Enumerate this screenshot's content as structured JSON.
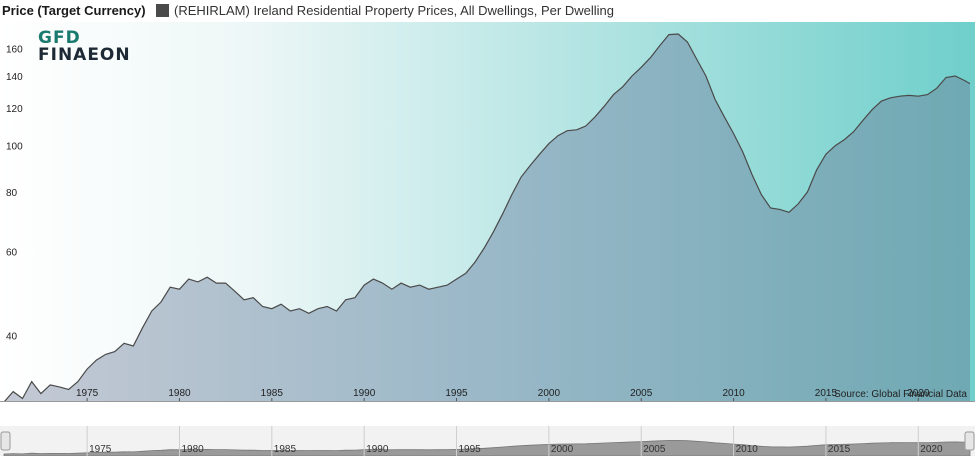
{
  "header": {
    "axis_title": "Price (Target Currency)",
    "legend_label": "(REHIRLAM) Ireland Residential Property Prices, All Dwellings, Per Dwelling"
  },
  "logo": {
    "line1": "GFD",
    "line2": "FINAEON"
  },
  "source": "Source: Global Financial Data",
  "colors": {
    "line": "#4a4a4a",
    "bg_left": "#ffffff",
    "bg_right": "#6fcfcb",
    "area_left": "#c4c9d4",
    "area_right": "#6fa9b3"
  },
  "chart_data": {
    "type": "area",
    "scale": "log",
    "ylim": [
      29,
      180
    ],
    "xlim": [
      1970.5,
      2022.8
    ],
    "y_ticks": [
      40,
      60,
      80,
      100,
      120,
      140,
      160
    ],
    "x_ticks": [
      1975,
      1980,
      1985,
      1990,
      1995,
      2000,
      2005,
      2010,
      2015,
      2020
    ],
    "grid": false,
    "series": [
      {
        "name": "(REHIRLAM) Ireland Residential Property Prices, All Dwellings, Per Dwelling",
        "points": [
          [
            1970.5,
            29.0
          ],
          [
            1971.0,
            30.5
          ],
          [
            1971.5,
            29.5
          ],
          [
            1972.0,
            32.0
          ],
          [
            1972.5,
            30.2
          ],
          [
            1973.0,
            31.5
          ],
          [
            1973.5,
            31.2
          ],
          [
            1974.0,
            30.8
          ],
          [
            1974.5,
            32.0
          ],
          [
            1975.0,
            34.0
          ],
          [
            1975.5,
            35.5
          ],
          [
            1976.0,
            36.5
          ],
          [
            1976.5,
            37.0
          ],
          [
            1977.0,
            38.5
          ],
          [
            1977.5,
            38.0
          ],
          [
            1978.0,
            41.5
          ],
          [
            1978.5,
            45.0
          ],
          [
            1979.0,
            47.0
          ],
          [
            1979.5,
            50.5
          ],
          [
            1980.0,
            50.0
          ],
          [
            1980.5,
            52.5
          ],
          [
            1981.0,
            51.8
          ],
          [
            1981.5,
            53.0
          ],
          [
            1982.0,
            51.5
          ],
          [
            1982.5,
            51.5
          ],
          [
            1983.0,
            49.5
          ],
          [
            1983.5,
            47.5
          ],
          [
            1984.0,
            48.0
          ],
          [
            1984.5,
            46.0
          ],
          [
            1985.0,
            45.5
          ],
          [
            1985.5,
            46.5
          ],
          [
            1986.0,
            45.0
          ],
          [
            1986.5,
            45.5
          ],
          [
            1987.0,
            44.5
          ],
          [
            1987.5,
            45.5
          ],
          [
            1988.0,
            46.0
          ],
          [
            1988.5,
            45.0
          ],
          [
            1989.0,
            47.5
          ],
          [
            1989.5,
            48.0
          ],
          [
            1990.0,
            51.0
          ],
          [
            1990.5,
            52.5
          ],
          [
            1991.0,
            51.5
          ],
          [
            1991.5,
            50.0
          ],
          [
            1992.0,
            51.5
          ],
          [
            1992.5,
            50.5
          ],
          [
            1993.0,
            51.0
          ],
          [
            1993.5,
            50.0
          ],
          [
            1994.0,
            50.5
          ],
          [
            1994.5,
            51.0
          ],
          [
            1995.0,
            52.5
          ],
          [
            1995.5,
            54.0
          ],
          [
            1996.0,
            57.0
          ],
          [
            1996.5,
            61.0
          ],
          [
            1997.0,
            66.0
          ],
          [
            1997.5,
            72.0
          ],
          [
            1998.0,
            79.0
          ],
          [
            1998.5,
            86.0
          ],
          [
            1999.0,
            91.0
          ],
          [
            1999.5,
            96.0
          ],
          [
            2000.0,
            101.0
          ],
          [
            2000.5,
            105.0
          ],
          [
            2001.0,
            107.5
          ],
          [
            2001.5,
            108.0
          ],
          [
            2002.0,
            110.0
          ],
          [
            2002.5,
            115.0
          ],
          [
            2003.0,
            121.0
          ],
          [
            2003.5,
            128.0
          ],
          [
            2004.0,
            133.0
          ],
          [
            2004.5,
            140.0
          ],
          [
            2005.0,
            146.0
          ],
          [
            2005.5,
            153.0
          ],
          [
            2006.0,
            162.0
          ],
          [
            2006.5,
            171.0
          ],
          [
            2007.0,
            171.5
          ],
          [
            2007.5,
            165.0
          ],
          [
            2008.0,
            152.0
          ],
          [
            2008.5,
            140.0
          ],
          [
            2009.0,
            125.0
          ],
          [
            2009.5,
            115.0
          ],
          [
            2010.0,
            106.0
          ],
          [
            2010.5,
            97.0
          ],
          [
            2011.0,
            87.0
          ],
          [
            2011.5,
            79.0
          ],
          [
            2012.0,
            74.0
          ],
          [
            2012.5,
            73.5
          ],
          [
            2013.0,
            72.5
          ],
          [
            2013.5,
            75.5
          ],
          [
            2014.0,
            80.0
          ],
          [
            2014.5,
            89.0
          ],
          [
            2015.0,
            96.0
          ],
          [
            2015.5,
            100.0
          ],
          [
            2016.0,
            103.0
          ],
          [
            2016.5,
            107.0
          ],
          [
            2017.0,
            113.0
          ],
          [
            2017.5,
            119.0
          ],
          [
            2018.0,
            124.0
          ],
          [
            2018.5,
            126.0
          ],
          [
            2019.0,
            127.0
          ],
          [
            2019.5,
            127.5
          ],
          [
            2020.0,
            127.0
          ],
          [
            2020.5,
            128.0
          ],
          [
            2021.0,
            132.0
          ],
          [
            2021.5,
            139.0
          ],
          [
            2022.0,
            140.0
          ],
          [
            2022.5,
            137.0
          ],
          [
            2022.8,
            135.0
          ]
        ]
      }
    ]
  }
}
